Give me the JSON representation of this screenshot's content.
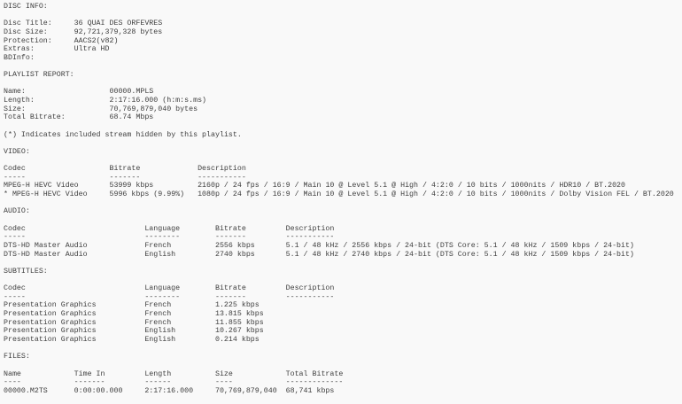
{
  "colors": {
    "background": "#f9f9f9",
    "text": "#3e3e3e"
  },
  "disc_info": {
    "title": "DISC INFO:",
    "rows": [
      {
        "label": "Disc Title:",
        "value": "36 QUAI DES ORFEVRES"
      },
      {
        "label": "Disc Size:",
        "value": "92,721,379,328 bytes"
      },
      {
        "label": "Protection:",
        "value": "AACS2(v82)"
      },
      {
        "label": "Extras:",
        "value": "Ultra HD"
      },
      {
        "label": "BDInfo:",
        "value": ""
      }
    ]
  },
  "playlist_report": {
    "title": "PLAYLIST REPORT:",
    "rows": [
      {
        "label": "Name:",
        "value": "00000.MPLS"
      },
      {
        "label": "Length:",
        "value": "2:17:16.000 (h:m:s.ms)"
      },
      {
        "label": "Size:",
        "value": "70,769,879,040 bytes"
      },
      {
        "label": "Total Bitrate:",
        "value": "68.74 Mbps"
      }
    ]
  },
  "note": "(*) Indicates included stream hidden by this playlist.",
  "video": {
    "title": "VIDEO:",
    "headers": {
      "codec": "Codec",
      "bitrate": "Bitrate",
      "description": "Description"
    },
    "dashes": {
      "codec": "-----",
      "bitrate": "-------",
      "description": "-----------"
    },
    "rows": [
      {
        "codec": "MPEG-H HEVC Video",
        "bitrate": "53999 kbps",
        "description": "2160p / 24 fps / 16:9 / Main 10 @ Level 5.1 @ High / 4:2:0 / 10 bits / 1000nits / HDR10 / BT.2020"
      },
      {
        "codec": "* MPEG-H HEVC Video",
        "bitrate": "5996 kbps (9.99%)",
        "description": "1080p / 24 fps / 16:9 / Main 10 @ Level 5.1 @ High / 4:2:0 / 10 bits / 1000nits / Dolby Vision FEL / BT.2020"
      }
    ]
  },
  "audio": {
    "title": "AUDIO:",
    "headers": {
      "codec": "Codec",
      "language": "Language",
      "bitrate": "Bitrate",
      "description": "Description"
    },
    "dashes": {
      "codec": "-----",
      "language": "--------",
      "bitrate": "-------",
      "description": "-----------"
    },
    "rows": [
      {
        "codec": "DTS-HD Master Audio",
        "language": "French",
        "bitrate": "2556 kbps",
        "description": "5.1 / 48 kHz / 2556 kbps / 24-bit (DTS Core: 5.1 / 48 kHz / 1509 kbps / 24-bit)"
      },
      {
        "codec": "DTS-HD Master Audio",
        "language": "English",
        "bitrate": "2740 kbps",
        "description": "5.1 / 48 kHz / 2740 kbps / 24-bit (DTS Core: 5.1 / 48 kHz / 1509 kbps / 24-bit)"
      }
    ]
  },
  "subtitles": {
    "title": "SUBTITLES:",
    "headers": {
      "codec": "Codec",
      "language": "Language",
      "bitrate": "Bitrate",
      "description": "Description"
    },
    "dashes": {
      "codec": "-----",
      "language": "--------",
      "bitrate": "-------",
      "description": "-----------"
    },
    "rows": [
      {
        "codec": "Presentation Graphics",
        "language": "French",
        "bitrate": "1.225 kbps",
        "description": ""
      },
      {
        "codec": "Presentation Graphics",
        "language": "French",
        "bitrate": "13.815 kbps",
        "description": ""
      },
      {
        "codec": "Presentation Graphics",
        "language": "French",
        "bitrate": "11.855 kbps",
        "description": ""
      },
      {
        "codec": "Presentation Graphics",
        "language": "English",
        "bitrate": "10.267 kbps",
        "description": ""
      },
      {
        "codec": "Presentation Graphics",
        "language": "English",
        "bitrate": "0.214 kbps",
        "description": ""
      }
    ]
  },
  "files": {
    "title": "FILES:",
    "headers": {
      "name": "Name",
      "time_in": "Time In",
      "length": "Length",
      "size": "Size",
      "total_bitrate": "Total Bitrate"
    },
    "dashes": {
      "name": "----",
      "time_in": "-------",
      "length": "------",
      "size": "----",
      "total_bitrate": "-------------"
    },
    "rows": [
      {
        "name": "00000.M2TS",
        "time_in": "0:00:00.000",
        "length": "2:17:16.000",
        "size": "70,769,879,040",
        "total_bitrate": "68,741 kbps"
      }
    ]
  }
}
